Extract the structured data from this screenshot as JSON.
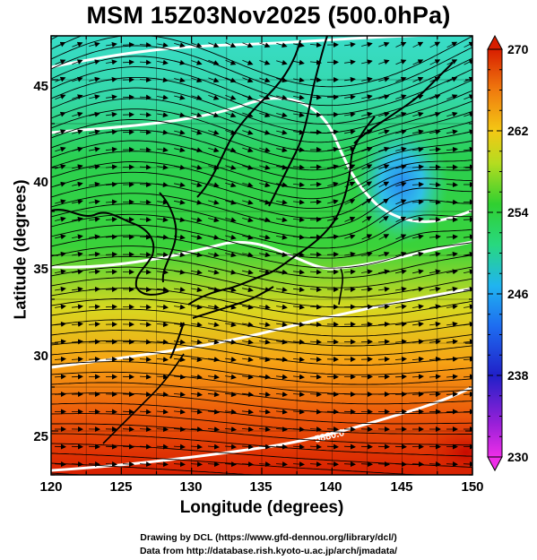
{
  "title": "MSM 15Z03Nov2025 (500.0hPa)",
  "axes": {
    "xlabel": "Longitude (degrees)",
    "ylabel": "Latitude  (degrees)",
    "xticks": [
      "120",
      "125",
      "130",
      "135",
      "140",
      "145",
      "150"
    ],
    "yticks": [
      "45",
      "40",
      "35",
      "30",
      "25"
    ]
  },
  "colorbar": {
    "labels": [
      "270",
      "262",
      "254",
      "246",
      "238",
      "230"
    ],
    "min": 230,
    "max": 270
  },
  "contour_label": "5880.0",
  "credits": [
    "Drawing by DCL (https://www.gfd-dennou.org/library/dcl/)",
    "Data from http://database.rish.kyoto-u.ac.jp/arch/jmadata/"
  ],
  "chart_data": {
    "type": "heatmap",
    "title": "MSM 15Z03Nov2025 (500.0hPa)",
    "xlabel": "Longitude (degrees)",
    "ylabel": "Latitude  (degrees)",
    "xlim": [
      120,
      150
    ],
    "ylim": [
      22.5,
      47.5
    ],
    "colorbar_range": [
      230,
      270
    ],
    "overlays": [
      "streamlines",
      "wind vectors",
      "geopotential height contours",
      "coastlines"
    ],
    "colors": {
      "high": "#d81e00",
      "mid": "#2ad030",
      "low": "#2aa8f0",
      "min": "#ee2ee8"
    }
  }
}
